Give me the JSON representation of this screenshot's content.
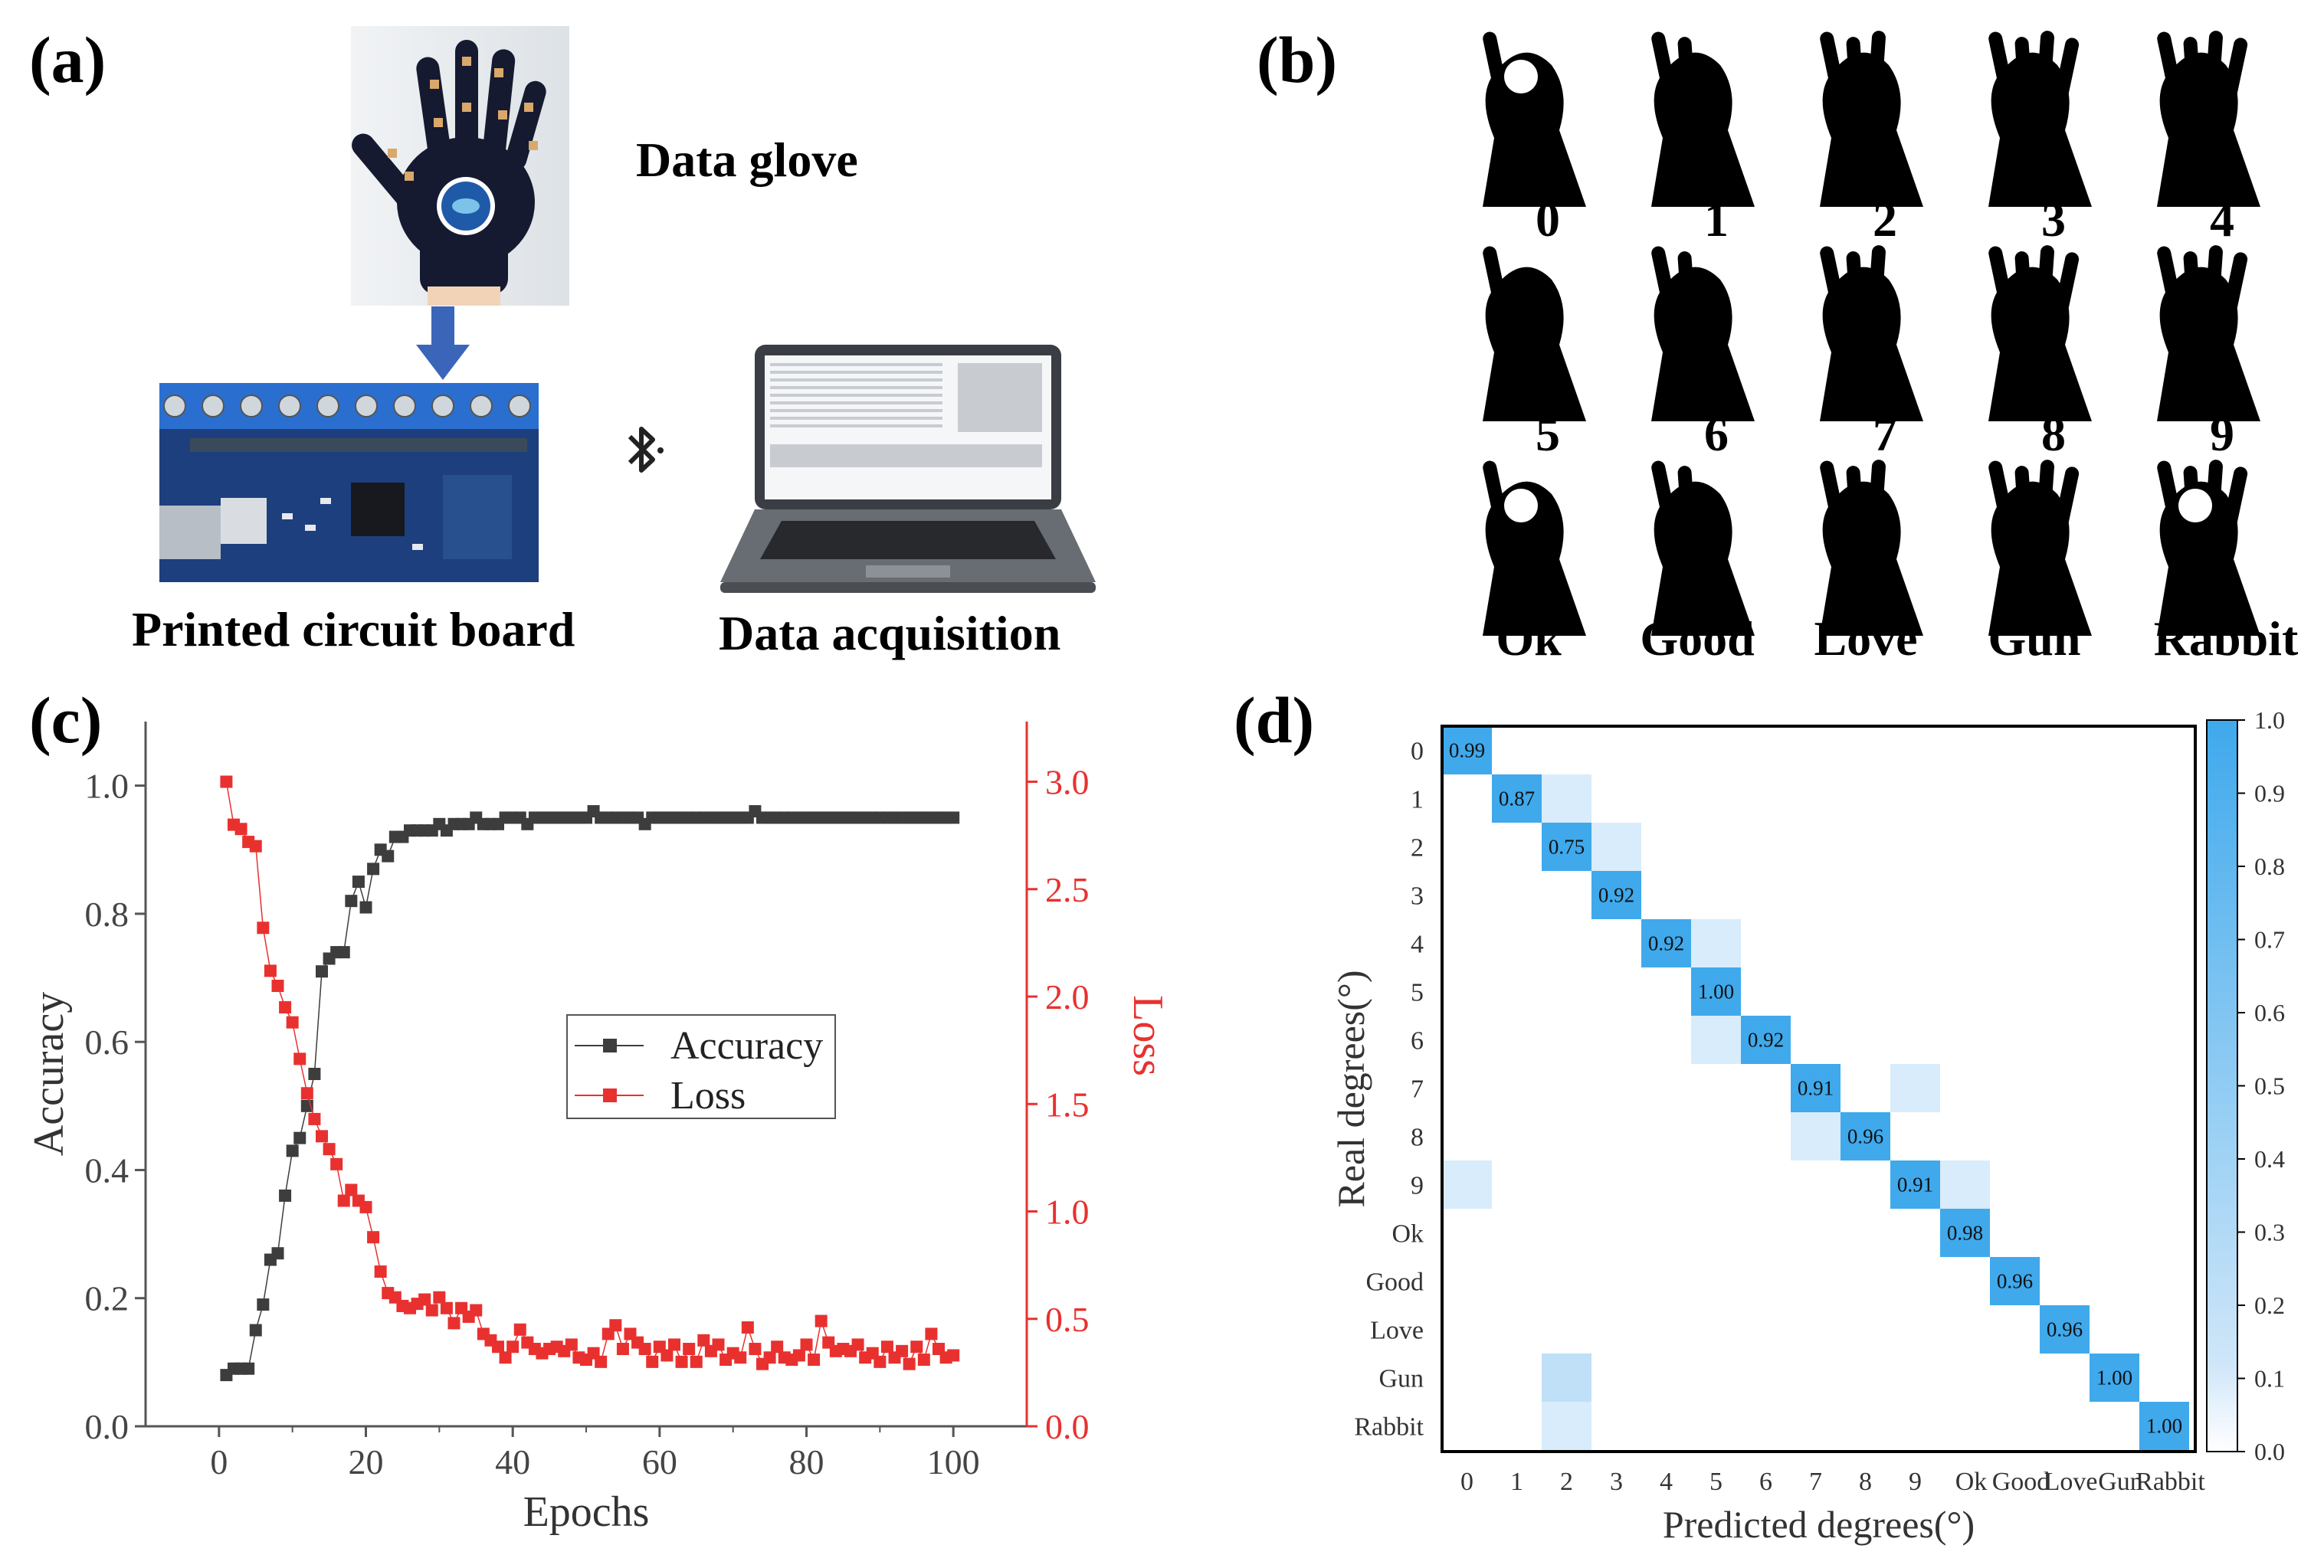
{
  "panels": {
    "a": {
      "label": "(a)",
      "glove_caption": "Data glove",
      "pcb_caption": "Printed circuit board",
      "daq_caption": "Data acquisition",
      "icons": [
        "glove-photo",
        "arrow-down-icon",
        "circuit-board-photo",
        "bluetooth-icon",
        "laptop-photo"
      ]
    },
    "b": {
      "label": "(b)",
      "gestures": [
        "0",
        "1",
        "2",
        "3",
        "4",
        "5",
        "6",
        "7",
        "8",
        "9",
        "Ok",
        "Good",
        "Love",
        "Gun",
        "Rabbit"
      ]
    },
    "c": {
      "label": "(c)"
    },
    "d": {
      "label": "(d)"
    }
  },
  "chart_data": [
    {
      "type": "line",
      "panel": "c",
      "xlabel": "Epochs",
      "ylabel": "Accuracy",
      "y2label": "Loss",
      "xlim": [
        -10,
        110
      ],
      "ylim": [
        0,
        1.1
      ],
      "y2lim": [
        0,
        3.28
      ],
      "xticks": [
        "0",
        "20",
        "40",
        "60",
        "80",
        "100"
      ],
      "yticks": [
        "0.0",
        "0.2",
        "0.4",
        "0.6",
        "0.8",
        "1.0"
      ],
      "y2ticks": [
        "0.0",
        "0.5",
        "1.0",
        "1.5",
        "2.0",
        "2.5",
        "3.0"
      ],
      "legend_position": "center-right",
      "colors": {
        "accuracy": "#3d3d3d",
        "loss": "#e8312f"
      },
      "series": [
        {
          "name": "Accuracy",
          "axis": "left",
          "x": [
            1,
            2,
            3,
            4,
            5,
            6,
            7,
            8,
            9,
            10,
            11,
            12,
            13,
            14,
            15,
            16,
            17,
            18,
            19,
            20,
            21,
            22,
            23,
            24,
            25,
            26,
            27,
            28,
            29,
            30,
            31,
            32,
            33,
            34,
            35,
            36,
            37,
            38,
            39,
            40,
            41,
            42,
            43,
            44,
            45,
            46,
            47,
            48,
            49,
            50,
            51,
            52,
            53,
            54,
            55,
            56,
            57,
            58,
            59,
            60,
            61,
            62,
            63,
            64,
            65,
            66,
            67,
            68,
            69,
            70,
            71,
            72,
            73,
            74,
            75,
            76,
            77,
            78,
            79,
            80,
            81,
            82,
            83,
            84,
            85,
            86,
            87,
            88,
            89,
            90,
            91,
            92,
            93,
            94,
            95,
            96,
            97,
            98,
            99,
            100
          ],
          "y": [
            0.08,
            0.09,
            0.09,
            0.09,
            0.15,
            0.19,
            0.26,
            0.27,
            0.36,
            0.43,
            0.45,
            0.5,
            0.55,
            0.71,
            0.73,
            0.74,
            0.74,
            0.82,
            0.85,
            0.81,
            0.87,
            0.9,
            0.89,
            0.92,
            0.92,
            0.93,
            0.93,
            0.93,
            0.93,
            0.94,
            0.93,
            0.94,
            0.94,
            0.94,
            0.95,
            0.94,
            0.94,
            0.94,
            0.95,
            0.95,
            0.95,
            0.94,
            0.95,
            0.95,
            0.95,
            0.95,
            0.95,
            0.95,
            0.95,
            0.95,
            0.96,
            0.95,
            0.95,
            0.95,
            0.95,
            0.95,
            0.95,
            0.94,
            0.95,
            0.95,
            0.95,
            0.95,
            0.95,
            0.95,
            0.95,
            0.95,
            0.95,
            0.95,
            0.95,
            0.95,
            0.95,
            0.95,
            0.96,
            0.95,
            0.95,
            0.95,
            0.95,
            0.95,
            0.95,
            0.95,
            0.95,
            0.95,
            0.95,
            0.95,
            0.95,
            0.95,
            0.95,
            0.95,
            0.95,
            0.95,
            0.95,
            0.95,
            0.95,
            0.95,
            0.95,
            0.95,
            0.95,
            0.95,
            0.95,
            0.95
          ]
        },
        {
          "name": "Loss",
          "axis": "right",
          "x": [
            1,
            2,
            3,
            4,
            5,
            6,
            7,
            8,
            9,
            10,
            11,
            12,
            13,
            14,
            15,
            16,
            17,
            18,
            19,
            20,
            21,
            22,
            23,
            24,
            25,
            26,
            27,
            28,
            29,
            30,
            31,
            32,
            33,
            34,
            35,
            36,
            37,
            38,
            39,
            40,
            41,
            42,
            43,
            44,
            45,
            46,
            47,
            48,
            49,
            50,
            51,
            52,
            53,
            54,
            55,
            56,
            57,
            58,
            59,
            60,
            61,
            62,
            63,
            64,
            65,
            66,
            67,
            68,
            69,
            70,
            71,
            72,
            73,
            74,
            75,
            76,
            77,
            78,
            79,
            80,
            81,
            82,
            83,
            84,
            85,
            86,
            87,
            88,
            89,
            90,
            91,
            92,
            93,
            94,
            95,
            96,
            97,
            98,
            99,
            100
          ],
          "y": [
            3.0,
            2.8,
            2.78,
            2.72,
            2.7,
            2.32,
            2.12,
            2.05,
            1.95,
            1.88,
            1.71,
            1.55,
            1.43,
            1.35,
            1.29,
            1.22,
            1.05,
            1.1,
            1.05,
            1.02,
            0.88,
            0.72,
            0.62,
            0.6,
            0.56,
            0.55,
            0.57,
            0.59,
            0.54,
            0.6,
            0.55,
            0.48,
            0.55,
            0.51,
            0.54,
            0.43,
            0.4,
            0.37,
            0.32,
            0.37,
            0.45,
            0.39,
            0.36,
            0.34,
            0.36,
            0.37,
            0.35,
            0.38,
            0.32,
            0.31,
            0.34,
            0.3,
            0.43,
            0.47,
            0.36,
            0.43,
            0.39,
            0.36,
            0.3,
            0.37,
            0.33,
            0.38,
            0.3,
            0.36,
            0.3,
            0.4,
            0.35,
            0.38,
            0.31,
            0.34,
            0.32,
            0.46,
            0.36,
            0.29,
            0.32,
            0.37,
            0.32,
            0.31,
            0.33,
            0.38,
            0.31,
            0.49,
            0.39,
            0.35,
            0.36,
            0.35,
            0.38,
            0.32,
            0.34,
            0.3,
            0.37,
            0.32,
            0.35,
            0.29,
            0.37,
            0.31,
            0.43,
            0.36,
            0.32,
            0.33
          ]
        }
      ]
    },
    {
      "type": "heatmap",
      "panel": "d",
      "xlabel": "Predicted degrees(°)",
      "ylabel": "Real degrees(°)",
      "categories": [
        "0",
        "1",
        "2",
        "3",
        "4",
        "5",
        "6",
        "7",
        "8",
        "9",
        "Ok",
        "Good",
        "Love",
        "Gun",
        "Rabbit"
      ],
      "colorbar_ticks": [
        "0.0",
        "0.1",
        "0.2",
        "0.3",
        "0.4",
        "0.5",
        "0.6",
        "0.7",
        "0.8",
        "0.9",
        "1.0"
      ],
      "colorbar_range": [
        0,
        1
      ],
      "colors": {
        "high": "#3fa9ec",
        "low": "#ffffff",
        "light": "#d8ecfb"
      },
      "cells": [
        {
          "row": 0,
          "col": 0,
          "value": 0.99,
          "label": "0.99"
        },
        {
          "row": 1,
          "col": 1,
          "value": 0.87,
          "label": "0.87"
        },
        {
          "row": 1,
          "col": 2,
          "value": 0.13,
          "label": ""
        },
        {
          "row": 2,
          "col": 2,
          "value": 0.75,
          "label": "0.75"
        },
        {
          "row": 2,
          "col": 3,
          "value": 0.08,
          "label": ""
        },
        {
          "row": 3,
          "col": 3,
          "value": 0.92,
          "label": "0.92"
        },
        {
          "row": 4,
          "col": 4,
          "value": 0.92,
          "label": "0.92"
        },
        {
          "row": 4,
          "col": 5,
          "value": 0.08,
          "label": ""
        },
        {
          "row": 5,
          "col": 5,
          "value": 1.0,
          "label": "1.00"
        },
        {
          "row": 6,
          "col": 5,
          "value": 0.08,
          "label": ""
        },
        {
          "row": 6,
          "col": 6,
          "value": 0.92,
          "label": "0.92"
        },
        {
          "row": 7,
          "col": 7,
          "value": 0.91,
          "label": "0.91"
        },
        {
          "row": 7,
          "col": 9,
          "value": 0.09,
          "label": ""
        },
        {
          "row": 8,
          "col": 7,
          "value": 0.04,
          "label": ""
        },
        {
          "row": 8,
          "col": 8,
          "value": 0.96,
          "label": "0.96"
        },
        {
          "row": 9,
          "col": 0,
          "value": 0.05,
          "label": ""
        },
        {
          "row": 9,
          "col": 9,
          "value": 0.91,
          "label": "0.91"
        },
        {
          "row": 9,
          "col": 10,
          "value": 0.04,
          "label": ""
        },
        {
          "row": 10,
          "col": 10,
          "value": 0.98,
          "label": "0.98"
        },
        {
          "row": 11,
          "col": 11,
          "value": 0.96,
          "label": "0.96"
        },
        {
          "row": 12,
          "col": 12,
          "value": 0.96,
          "label": "0.96"
        },
        {
          "row": 13,
          "col": 2,
          "value": 0.25,
          "label": ""
        },
        {
          "row": 13,
          "col": 13,
          "value": 1.0,
          "label": "1.00"
        },
        {
          "row": 14,
          "col": 2,
          "value": 0.04,
          "label": ""
        },
        {
          "row": 14,
          "col": 14,
          "value": 1.0,
          "label": "1.00"
        }
      ]
    }
  ]
}
